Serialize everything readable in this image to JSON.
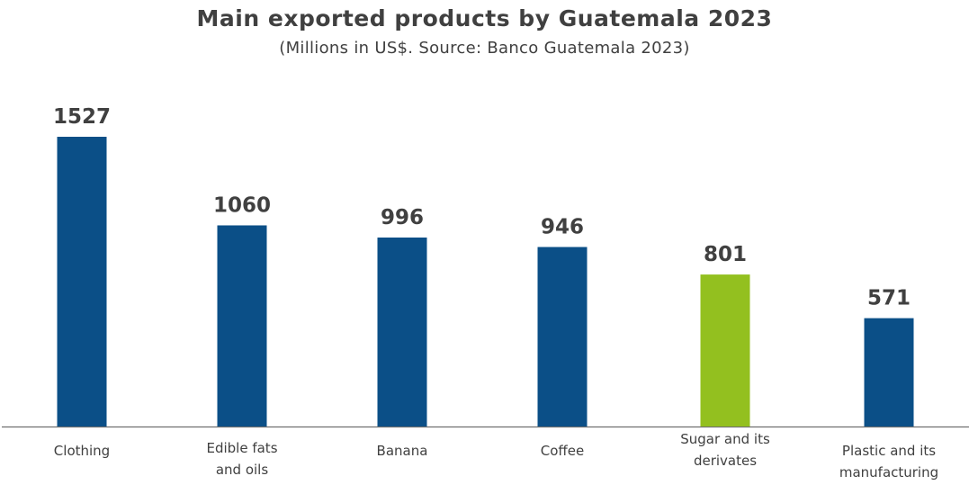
{
  "chart_data": {
    "type": "bar",
    "title": "Main exported products by Guatemala 2023",
    "subtitle": "(Millions in US$. Source: Banco Guatemala 2023)",
    "categories": [
      "Clothing",
      "Edible fats and oils",
      "Banana",
      "Coffee",
      "Sugar and its derivates",
      "Plastic and its manufacturing"
    ],
    "category_lines": [
      [
        "Clothing"
      ],
      [
        "Edible fats",
        "and oils"
      ],
      [
        "Banana"
      ],
      [
        "Coffee"
      ],
      [
        "Sugar and its",
        "derivates"
      ],
      [
        "Plastic and its",
        "manufacturing"
      ]
    ],
    "values": [
      1527,
      1060,
      996,
      946,
      801,
      571
    ],
    "data_labels": [
      "1527",
      "1060",
      "996",
      "946",
      "801",
      "571"
    ],
    "xlabel": "",
    "ylabel": "",
    "ylim": [
      0,
      1527
    ],
    "grid": false,
    "legend": "none",
    "colors": {
      "default_bar": "#0b4f87",
      "highlight_bar": "#93c01f",
      "axis_line": "#6f6f6f",
      "text": "#404040"
    },
    "highlight_index": 4
  }
}
